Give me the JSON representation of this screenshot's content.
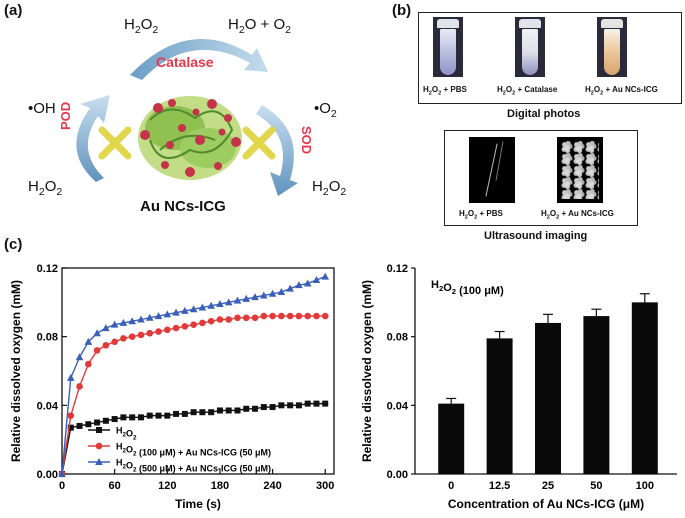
{
  "panels": {
    "a": {
      "label": "(a)",
      "h2o2_top": "H2O2",
      "products_top": "H2O + O2",
      "catalase": "Catalase",
      "oh": "•OH",
      "pod": "POD",
      "h2o2_left": "H2O2",
      "o2_radical": "•O2",
      "sod": "SOD",
      "h2o2_right": "H2O2",
      "nanozyme": "Au NCs-ICG"
    },
    "b": {
      "label": "(b)",
      "tube1": "H2O2 + PBS",
      "tube2": "H2O2 + Catalase",
      "tube3": "H2O2 + Au NCs-ICG",
      "digital_caption": "Digital photos",
      "us1": "H2O2 + PBS",
      "us2": "H2O2 + Au NCs-ICG",
      "us_caption": "Ultrasound imaging"
    },
    "c": {
      "label": "(c)"
    }
  },
  "colors": {
    "catalase": "#e8374d",
    "arrow": "#8fb8d8",
    "cross": "#e8d84a",
    "red_series": "#e23a3a",
    "blue_series": "#3a5fb8"
  },
  "chart_data": [
    {
      "type": "line",
      "title": "",
      "xlabel": "Time (s)",
      "ylabel": "Relative dissolved oxygen (mM)",
      "xlim": [
        0,
        310
      ],
      "ylim": [
        0,
        0.12
      ],
      "xticks": [
        "0",
        "60",
        "120",
        "180",
        "240",
        "300"
      ],
      "yticks": [
        "0.00",
        "0.04",
        "0.08",
        "0.12"
      ],
      "legend_position": "bottom-right",
      "series": [
        {
          "name": "H2O2",
          "color": "#111111",
          "marker": "square",
          "x": [
            0,
            10,
            20,
            30,
            40,
            50,
            60,
            70,
            80,
            90,
            100,
            110,
            120,
            130,
            140,
            150,
            160,
            170,
            180,
            190,
            200,
            210,
            220,
            230,
            240,
            250,
            260,
            270,
            280,
            290,
            300
          ],
          "y": [
            0,
            0.027,
            0.028,
            0.029,
            0.03,
            0.031,
            0.032,
            0.033,
            0.033,
            0.033,
            0.034,
            0.034,
            0.034,
            0.035,
            0.035,
            0.036,
            0.036,
            0.036,
            0.037,
            0.037,
            0.037,
            0.038,
            0.038,
            0.039,
            0.039,
            0.04,
            0.04,
            0.04,
            0.041,
            0.041,
            0.041
          ]
        },
        {
          "name": "H2O2 (100 μM) + Au NCs-ICG (50 μM)",
          "color": "#e23a3a",
          "marker": "circle",
          "x": [
            0,
            10,
            20,
            30,
            40,
            50,
            60,
            70,
            80,
            90,
            100,
            110,
            120,
            130,
            140,
            150,
            160,
            170,
            180,
            190,
            200,
            210,
            220,
            230,
            240,
            250,
            260,
            270,
            280,
            290,
            300
          ],
          "y": [
            0,
            0.034,
            0.051,
            0.064,
            0.072,
            0.075,
            0.077,
            0.079,
            0.08,
            0.081,
            0.082,
            0.083,
            0.084,
            0.085,
            0.086,
            0.087,
            0.088,
            0.089,
            0.09,
            0.09,
            0.091,
            0.091,
            0.091,
            0.092,
            0.092,
            0.092,
            0.092,
            0.092,
            0.092,
            0.092,
            0.092
          ]
        },
        {
          "name": "H2O2 (500 μM) + Au NCs-ICG (50 μM)",
          "color": "#3a5fb8",
          "marker": "triangle",
          "x": [
            0,
            10,
            20,
            30,
            40,
            50,
            60,
            70,
            80,
            90,
            100,
            110,
            120,
            130,
            140,
            150,
            160,
            170,
            180,
            190,
            200,
            210,
            220,
            230,
            240,
            250,
            260,
            270,
            280,
            290,
            300
          ],
          "y": [
            0,
            0.056,
            0.068,
            0.077,
            0.082,
            0.085,
            0.087,
            0.088,
            0.089,
            0.09,
            0.091,
            0.092,
            0.093,
            0.094,
            0.095,
            0.096,
            0.097,
            0.098,
            0.099,
            0.1,
            0.101,
            0.102,
            0.103,
            0.104,
            0.105,
            0.106,
            0.108,
            0.11,
            0.111,
            0.113,
            0.115
          ]
        }
      ]
    },
    {
      "type": "bar",
      "title": "",
      "annotation": "H2O2 (100 μM)",
      "xlabel": "Concentration of Au NCs-ICG (μM)",
      "ylabel": "Relative dissolved oxygen (mM)",
      "ylim": [
        0,
        0.12
      ],
      "yticks": [
        "0.00",
        "0.04",
        "0.08",
        "0.12"
      ],
      "categories": [
        "0",
        "12.5",
        "25",
        "50",
        "100"
      ],
      "values": [
        0.041,
        0.079,
        0.088,
        0.092,
        0.1
      ],
      "errors": [
        0.003,
        0.004,
        0.005,
        0.004,
        0.005
      ]
    }
  ]
}
